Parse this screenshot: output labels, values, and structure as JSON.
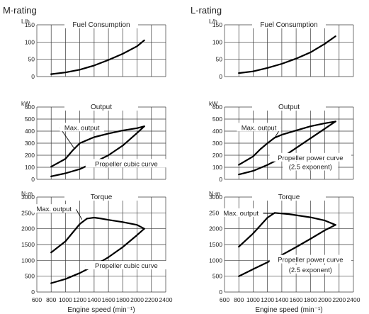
{
  "chart_data": [
    {
      "rating": "M-rating",
      "xlabel": "Engine speed (min⁻¹)",
      "xlim": [
        600,
        2400
      ],
      "xticks": [
        600,
        800,
        1000,
        1200,
        1400,
        1600,
        1800,
        2000,
        2200,
        2400
      ],
      "panels": [
        {
          "type": "line",
          "title": "Fuel Consumption",
          "unit": "L/h",
          "ylim": [
            0,
            150
          ],
          "yticks": [
            0,
            50,
            100,
            150
          ],
          "series": [
            {
              "x": [
                800,
                1000,
                1200,
                1400,
                1600,
                1800,
                2000,
                2100
              ],
              "y": [
                7,
                12,
                20,
                32,
                48,
                66,
                88,
                105
              ]
            }
          ],
          "annotations": []
        },
        {
          "type": "line",
          "title": "Output",
          "unit": "kW",
          "ylim": [
            0,
            600
          ],
          "yticks": [
            0,
            100,
            200,
            300,
            400,
            500,
            600
          ],
          "series": [
            {
              "x": [
                800,
                1000,
                1100,
                1200,
                1400,
                1600,
                1800,
                2000,
                2100
              ],
              "y": [
                105,
                170,
                240,
                300,
                350,
                380,
                405,
                425,
                440
              ]
            },
            {
              "x": [
                800,
                1000,
                1200,
                1400,
                1600,
                1800,
                2000,
                2100
              ],
              "y": [
                25,
                50,
                85,
                140,
                200,
                280,
                385,
                440
              ]
            }
          ],
          "annotations": [
            {
              "text": "Max. output",
              "x": 1230,
              "y": 410,
              "px": 1130,
              "py": 250
            },
            {
              "text": "Propeller cubic curve",
              "x": 1850,
              "y": 110,
              "px": 1560,
              "py": 110
            }
          ]
        },
        {
          "type": "line",
          "title": "Torque",
          "unit": "N·m",
          "ylim": [
            0,
            3000
          ],
          "yticks": [
            0,
            500,
            1000,
            1500,
            2000,
            2500,
            3000
          ],
          "series": [
            {
              "x": [
                800,
                1000,
                1200,
                1300,
                1400,
                1500,
                1600,
                1800,
                2000,
                2100
              ],
              "y": [
                1250,
                1600,
                2150,
                2320,
                2350,
                2320,
                2280,
                2210,
                2120,
                2000
              ]
            },
            {
              "x": [
                800,
                1000,
                1200,
                1400,
                1600,
                1800,
                2000,
                2100
              ],
              "y": [
                280,
                410,
                600,
                830,
                1100,
                1420,
                1800,
                2000
              ]
            }
          ],
          "annotations": [
            {
              "text": "Max. output",
              "x": 840,
              "y": 2550,
              "px": 1230,
              "py": 2290
            },
            {
              "text": "Propeller cubic curve",
              "x": 1850,
              "y": 760,
              "px": 1760,
              "py": 760
            }
          ]
        }
      ]
    },
    {
      "rating": "L-rating",
      "xlabel": "Engine speed (min⁻¹)",
      "xlim": [
        600,
        2400
      ],
      "xticks": [
        600,
        800,
        1000,
        1200,
        1400,
        1600,
        1800,
        2000,
        2200,
        2400
      ],
      "panels": [
        {
          "type": "line",
          "title": "Fuel Consumption",
          "unit": "L/h",
          "ylim": [
            0,
            150
          ],
          "yticks": [
            0,
            50,
            100,
            150
          ],
          "series": [
            {
              "x": [
                800,
                1000,
                1200,
                1400,
                1600,
                1800,
                2000,
                2150
              ],
              "y": [
                10,
                15,
                25,
                37,
                52,
                70,
                95,
                117
              ]
            }
          ],
          "annotations": []
        },
        {
          "type": "line",
          "title": "Output",
          "unit": "kW",
          "ylim": [
            0,
            600
          ],
          "yticks": [
            0,
            100,
            200,
            300,
            400,
            500,
            600
          ],
          "series": [
            {
              "x": [
                800,
                1000,
                1100,
                1200,
                1300,
                1400,
                1600,
                1800,
                2000,
                2150
              ],
              "y": [
                120,
                190,
                250,
                300,
                345,
                370,
                405,
                440,
                465,
                480
              ]
            },
            {
              "x": [
                800,
                1000,
                1200,
                1400,
                1600,
                1800,
                2000,
                2150
              ],
              "y": [
                40,
                70,
                120,
                180,
                260,
                340,
                420,
                480
              ]
            }
          ],
          "annotations": [
            {
              "text": "Max. output",
              "x": 1080,
              "y": 410,
              "px": 1290,
              "py": 335
            },
            {
              "text": "Propeller power curve",
              "x": 1800,
              "y": 160,
              "px": 1640,
              "py": 160
            },
            {
              "text": "(2.5 exponent)",
              "x": 1800,
              "y": 85,
              "px": null,
              "py": null
            }
          ]
        },
        {
          "type": "line",
          "title": "Torque",
          "unit": "N·m",
          "ylim": [
            0,
            3000
          ],
          "yticks": [
            0,
            500,
            1000,
            1500,
            2000,
            2500,
            3000
          ],
          "series": [
            {
              "x": [
                800,
                1000,
                1200,
                1300,
                1350,
                1500,
                1800,
                2000,
                2150
              ],
              "y": [
                1430,
                1850,
                2350,
                2500,
                2490,
                2460,
                2360,
                2260,
                2120
              ]
            },
            {
              "x": [
                800,
                1000,
                1200,
                1400,
                1600,
                1800,
                2000,
                2150
              ],
              "y": [
                500,
                720,
                940,
                1170,
                1420,
                1680,
                1950,
                2120
              ]
            }
          ],
          "annotations": [
            {
              "text": "Max. output",
              "x": 830,
              "y": 2420,
              "px": 1310,
              "py": 2480
            },
            {
              "text": "Propeller power curve",
              "x": 1800,
              "y": 950,
              "px": 1750,
              "py": 950
            },
            {
              "text": "(2.5 exponent)",
              "x": 1800,
              "y": 630,
              "px": null,
              "py": null
            }
          ]
        }
      ]
    }
  ]
}
